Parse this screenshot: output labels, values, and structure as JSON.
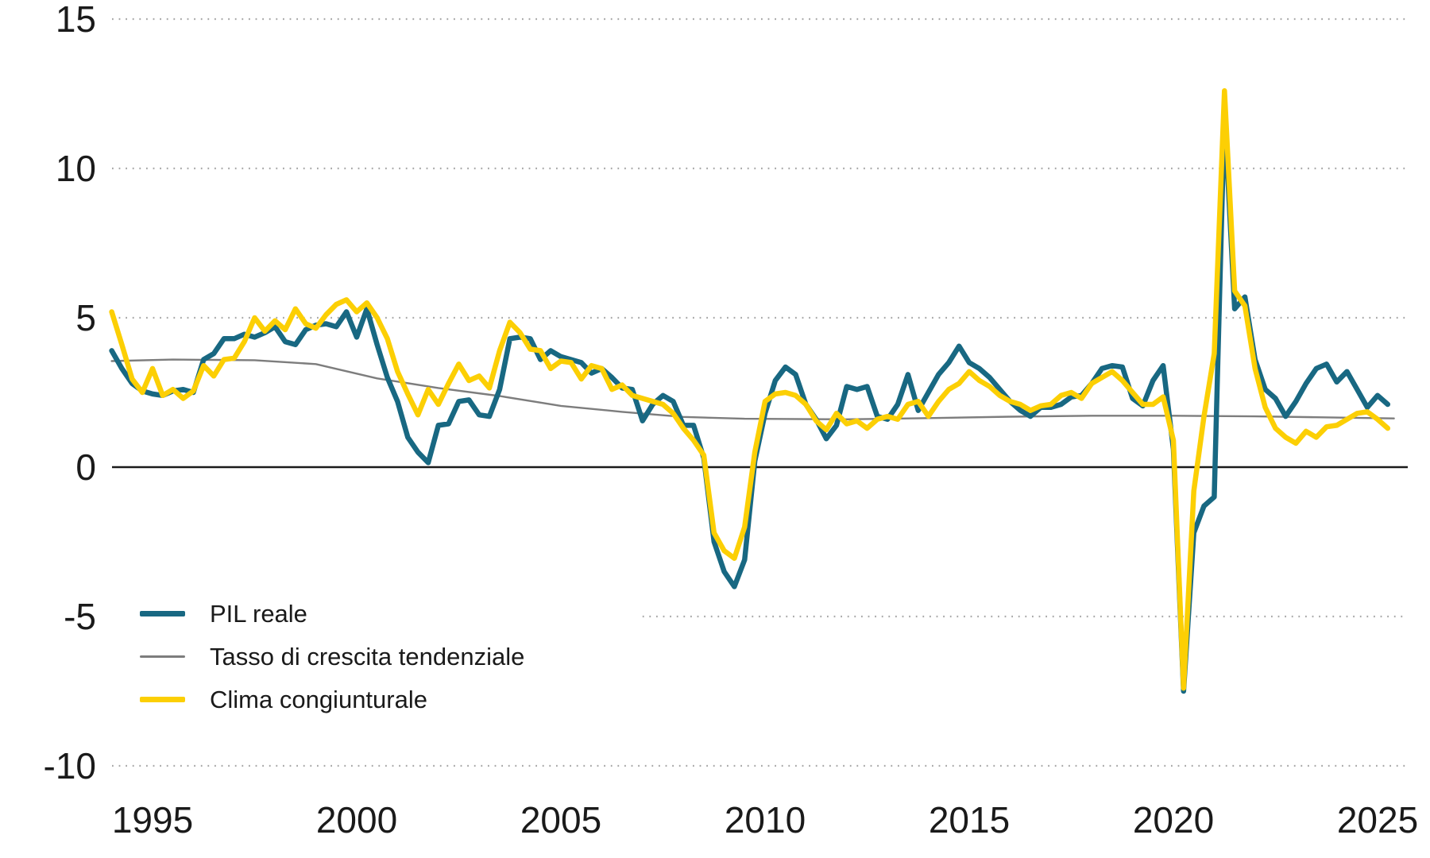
{
  "colors": {
    "background": "#ffffff",
    "text": "#1a1a1a",
    "grid_dotted": "#a8a8a8",
    "zero_line": "#1a1a1a",
    "gdp_line": "#186882",
    "trend_line": "#7d7d7d",
    "climate_line": "#fccf04"
  },
  "chart_data": {
    "type": "line",
    "title": "",
    "x_axis": {
      "tick_labels": [
        "1995",
        "2000",
        "2005",
        "2010",
        "2015",
        "2020",
        "2025"
      ],
      "tick_years": [
        1995,
        2000,
        2005,
        2010,
        2015,
        2020,
        2025
      ],
      "range": [
        1993.9,
        2025.75
      ],
      "unit": "year, quarterly data"
    },
    "y_axis": {
      "tick_labels": [
        "15",
        "10",
        "5",
        "0",
        "-5",
        "-10"
      ],
      "tick_values": [
        15,
        10,
        5,
        0,
        -5,
        -10
      ],
      "range": [
        -10,
        15
      ],
      "unit": "percent"
    },
    "grid": {
      "dotted_values": [
        15,
        10,
        5,
        -5,
        -10
      ],
      "partial_gridline": {
        "value": -5,
        "start_year": 2007
      },
      "zero_line_value": 0
    },
    "legend": {
      "position": "bottom-left-inside",
      "items": [
        "PIL reale",
        "Tasso di crescita tendenziale",
        "Clima congiunturale"
      ]
    },
    "series": [
      {
        "name": "PIL reale",
        "color": "#186882",
        "stroke_width": 6.5,
        "start": 1994.0,
        "step": 0.25,
        "values": [
          3.9,
          3.3,
          2.8,
          2.55,
          2.45,
          2.4,
          2.55,
          2.6,
          2.5,
          3.6,
          3.8,
          4.3,
          4.3,
          4.45,
          4.35,
          4.5,
          4.7,
          4.2,
          4.1,
          4.6,
          4.75,
          4.8,
          4.7,
          5.2,
          4.35,
          5.3,
          4.1,
          3.0,
          2.2,
          1.0,
          0.5,
          0.15,
          1.4,
          1.45,
          2.2,
          2.25,
          1.75,
          1.7,
          2.6,
          4.3,
          4.35,
          4.3,
          3.6,
          3.9,
          3.7,
          3.6,
          3.5,
          3.15,
          3.3,
          3.0,
          2.65,
          2.6,
          1.55,
          2.1,
          2.4,
          2.2,
          1.4,
          1.4,
          0.3,
          -2.5,
          -3.5,
          -4.0,
          -3.1,
          0.2,
          1.8,
          2.9,
          3.35,
          3.1,
          2.1,
          1.6,
          0.95,
          1.4,
          2.7,
          2.6,
          2.7,
          1.7,
          1.6,
          2.1,
          3.1,
          1.9,
          2.5,
          3.1,
          3.5,
          4.05,
          3.5,
          3.3,
          3.0,
          2.6,
          2.2,
          1.9,
          1.7,
          2.0,
          2.0,
          2.1,
          2.35,
          2.4,
          2.8,
          3.3,
          3.4,
          3.35,
          2.3,
          2.05,
          2.9,
          3.4,
          0.6,
          -7.5,
          -2.2,
          -1.3,
          -1.0,
          11.9,
          5.3,
          5.7,
          3.6,
          2.6,
          2.3,
          1.7,
          2.2,
          2.8,
          3.3,
          3.45,
          2.85,
          3.2,
          2.6,
          2.0,
          2.4,
          2.1
        ]
      },
      {
        "name": "Tasso di crescita tendenziale",
        "color": "#7d7d7d",
        "stroke_width": 2.4,
        "points": [
          [
            1994.0,
            3.55
          ],
          [
            1995.5,
            3.6
          ],
          [
            1997.5,
            3.58
          ],
          [
            1999.0,
            3.45
          ],
          [
            2000.5,
            2.97
          ],
          [
            2002.0,
            2.65
          ],
          [
            2003.5,
            2.38
          ],
          [
            2005.0,
            2.05
          ],
          [
            2006.5,
            1.85
          ],
          [
            2008.0,
            1.68
          ],
          [
            2009.5,
            1.62
          ],
          [
            2012.0,
            1.6
          ],
          [
            2014.0,
            1.64
          ],
          [
            2016.0,
            1.69
          ],
          [
            2018.0,
            1.72
          ],
          [
            2020.0,
            1.72
          ],
          [
            2022.0,
            1.7
          ],
          [
            2023.5,
            1.67
          ],
          [
            2025.4,
            1.63
          ]
        ]
      },
      {
        "name": "Clima congiunturale",
        "color": "#fccf04",
        "stroke_width": 6.5,
        "start": 1994.0,
        "step": 0.25,
        "values": [
          5.2,
          4.1,
          2.95,
          2.5,
          3.3,
          2.4,
          2.6,
          2.3,
          2.55,
          3.4,
          3.05,
          3.6,
          3.65,
          4.2,
          5.0,
          4.55,
          4.9,
          4.6,
          5.3,
          4.8,
          4.65,
          5.1,
          5.45,
          5.6,
          5.2,
          5.5,
          5.0,
          4.3,
          3.2,
          2.45,
          1.75,
          2.6,
          2.1,
          2.8,
          3.45,
          2.9,
          3.05,
          2.65,
          3.9,
          4.85,
          4.5,
          3.95,
          3.9,
          3.3,
          3.55,
          3.5,
          2.95,
          3.4,
          3.3,
          2.6,
          2.75,
          2.4,
          2.3,
          2.2,
          2.1,
          1.8,
          1.3,
          0.9,
          0.4,
          -2.2,
          -2.8,
          -3.05,
          -2.0,
          0.5,
          2.2,
          2.45,
          2.5,
          2.4,
          2.1,
          1.55,
          1.25,
          1.8,
          1.45,
          1.55,
          1.3,
          1.6,
          1.7,
          1.6,
          2.1,
          2.2,
          1.7,
          2.2,
          2.6,
          2.8,
          3.2,
          2.9,
          2.7,
          2.4,
          2.2,
          2.1,
          1.9,
          2.05,
          2.1,
          2.4,
          2.5,
          2.3,
          2.8,
          3.0,
          3.2,
          2.9,
          2.5,
          2.1,
          2.1,
          2.35,
          0.9,
          -7.4,
          -0.8,
          1.7,
          3.8,
          12.6,
          5.9,
          5.4,
          3.3,
          2.0,
          1.3,
          1.0,
          0.8,
          1.2,
          1.0,
          1.35,
          1.4,
          1.6,
          1.8,
          1.85,
          1.6,
          1.3
        ]
      }
    ]
  }
}
